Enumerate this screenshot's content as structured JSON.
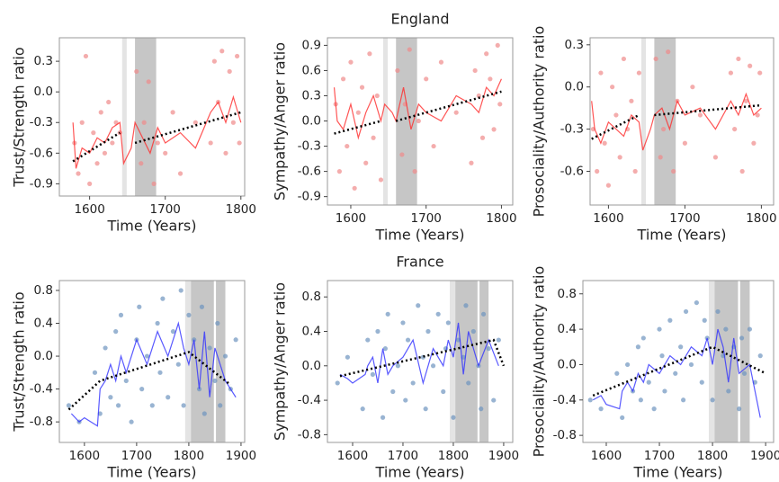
{
  "chart_data": [
    {
      "type": "scatter",
      "ylabel": "Trust/Strength ratio",
      "xlabel": "Time (Years)",
      "xlim": [
        1560,
        1805
      ],
      "ylim": [
        -1.02,
        0.53
      ],
      "xticks": [
        1600,
        1700,
        1800
      ],
      "yticks": [
        0.3,
        {
          "value": 0,
          "label": "0.0"
        },
        -0.3,
        -0.6,
        -0.9
      ],
      "point_color": "#f08a8a",
      "line_color": "#ff2a2a",
      "trend_color": "#000000",
      "spans": [
        {
          "start": 1643,
          "end": 1649,
          "shade": "#e4e4e4"
        },
        {
          "start": 1660,
          "end": 1688,
          "shade": "#c6c6c6"
        }
      ],
      "points": {
        "x": [
          1580,
          1585,
          1590,
          1595,
          1600,
          1605,
          1610,
          1615,
          1620,
          1625,
          1630,
          1635,
          1640,
          1662,
          1668,
          1672,
          1678,
          1685,
          1690,
          1700,
          1710,
          1720,
          1740,
          1760,
          1765,
          1770,
          1775,
          1780,
          1785,
          1790,
          1795,
          1798
        ],
        "y": [
          -0.5,
          -0.8,
          -0.3,
          0.35,
          -0.9,
          -0.4,
          -0.7,
          -0.2,
          -0.6,
          -0.1,
          -0.5,
          -0.3,
          -0.4,
          0.2,
          -0.7,
          -0.3,
          0.1,
          -0.9,
          -0.5,
          -0.6,
          -0.2,
          -0.8,
          -0.3,
          -0.5,
          0.3,
          -0.1,
          0.4,
          -0.6,
          0.2,
          -0.3,
          0.35,
          -0.5
        ]
      },
      "line": {
        "x": [
          1578,
          1582,
          1590,
          1600,
          1610,
          1620,
          1630,
          1640,
          1645,
          1655,
          1660,
          1670,
          1680,
          1690,
          1700,
          1720,
          1740,
          1760,
          1770,
          1780,
          1790,
          1800
        ],
        "y": [
          -0.3,
          -0.75,
          -0.55,
          -0.6,
          -0.45,
          -0.5,
          -0.35,
          -0.3,
          -0.7,
          -0.55,
          -0.3,
          -0.45,
          -0.6,
          -0.35,
          -0.5,
          -0.4,
          -0.55,
          -0.2,
          -0.1,
          -0.3,
          -0.05,
          -0.3
        ]
      },
      "trend": {
        "x": [
          1578,
          1640,
          1650,
          1660,
          1800
        ],
        "y": [
          -0.68,
          -0.4,
          null,
          -0.5,
          -0.2
        ]
      }
    },
    {
      "type": "scatter",
      "title": "England",
      "ylabel": "Sympathy/Anger ratio",
      "xlabel": "Time (Years)",
      "xlim": [
        1569,
        1815
      ],
      "ylim": [
        -1.0,
        0.99
      ],
      "xticks": [
        1600,
        1700,
        1800
      ],
      "yticks": [
        0.9,
        0.6,
        0.3,
        {
          "value": 0,
          "label": "0.0"
        },
        -0.3,
        -0.6,
        -0.9
      ],
      "point_color": "#f08a8a",
      "line_color": "#ff2a2a",
      "trend_color": "#000000",
      "spans": [
        {
          "start": 1643,
          "end": 1649,
          "shade": "#e4e4e4"
        },
        {
          "start": 1660,
          "end": 1688,
          "shade": "#c6c6c6"
        }
      ],
      "points": {
        "x": [
          1580,
          1585,
          1590,
          1595,
          1600,
          1605,
          1610,
          1615,
          1620,
          1625,
          1630,
          1635,
          1640,
          1662,
          1668,
          1672,
          1678,
          1685,
          1690,
          1700,
          1710,
          1720,
          1740,
          1760,
          1765,
          1770,
          1775,
          1780,
          1785,
          1790,
          1795,
          1798
        ],
        "y": [
          0.2,
          -0.6,
          0.5,
          -0.3,
          0.7,
          -0.8,
          0.1,
          0.4,
          -0.5,
          0.8,
          -0.2,
          0.3,
          -0.7,
          0.6,
          -0.4,
          0.2,
          0.85,
          -0.6,
          0.0,
          0.5,
          -0.3,
          0.7,
          0.1,
          -0.5,
          0.6,
          0.3,
          -0.2,
          0.8,
          0.5,
          -0.1,
          0.9,
          0.2
        ]
      },
      "line": {
        "x": [
          1578,
          1582,
          1590,
          1600,
          1610,
          1620,
          1630,
          1640,
          1645,
          1655,
          1660,
          1670,
          1680,
          1690,
          1700,
          1720,
          1740,
          1760,
          1770,
          1780,
          1790,
          1800
        ],
        "y": [
          0.4,
          0.0,
          -0.1,
          0.2,
          -0.2,
          0.1,
          0.3,
          0.0,
          0.2,
          0.1,
          0.0,
          0.4,
          -0.1,
          0.2,
          0.1,
          0.0,
          0.3,
          0.2,
          0.1,
          0.4,
          0.3,
          0.5
        ]
      },
      "trend": {
        "x": [
          1578,
          1640,
          1650,
          1660,
          1800
        ],
        "y": [
          -0.15,
          0.0,
          null,
          0.0,
          0.35
        ]
      }
    },
    {
      "type": "scatter",
      "ylabel": "Prosociality/Authority ratio",
      "xlabel": "Time (Years)",
      "xlim": [
        1576,
        1816
      ],
      "ylim": [
        -0.84,
        0.35
      ],
      "xticks": [
        1600,
        1700,
        1800
      ],
      "yticks": [
        0.3,
        {
          "value": 0,
          "label": "0.0"
        },
        -0.3,
        -0.6
      ],
      "point_color": "#f08a8a",
      "line_color": "#ff2a2a",
      "trend_color": "#000000",
      "spans": [
        {
          "start": 1643,
          "end": 1649,
          "shade": "#e4e4e4"
        },
        {
          "start": 1660,
          "end": 1688,
          "shade": "#c6c6c6"
        }
      ],
      "points": {
        "x": [
          1580,
          1585,
          1590,
          1595,
          1600,
          1605,
          1610,
          1615,
          1620,
          1625,
          1630,
          1635,
          1640,
          1662,
          1668,
          1672,
          1678,
          1685,
          1690,
          1700,
          1710,
          1720,
          1740,
          1760,
          1765,
          1770,
          1775,
          1780,
          1785,
          1790,
          1795,
          1798
        ],
        "y": [
          -0.3,
          -0.6,
          0.1,
          -0.4,
          -0.7,
          0.0,
          -0.2,
          -0.5,
          0.2,
          -0.3,
          -0.1,
          -0.6,
          0.1,
          0.2,
          -0.5,
          -0.3,
          0.25,
          -0.6,
          -0.1,
          -0.4,
          0.0,
          -0.2,
          -0.5,
          0.1,
          -0.3,
          0.2,
          -0.6,
          -0.1,
          0.15,
          -0.4,
          -0.2,
          0.1
        ]
      },
      "line": {
        "x": [
          1578,
          1582,
          1590,
          1600,
          1610,
          1620,
          1630,
          1640,
          1645,
          1655,
          1660,
          1670,
          1680,
          1690,
          1700,
          1720,
          1740,
          1760,
          1770,
          1780,
          1790,
          1800
        ],
        "y": [
          -0.1,
          -0.3,
          -0.4,
          -0.25,
          -0.3,
          -0.35,
          -0.2,
          -0.25,
          -0.45,
          -0.3,
          -0.2,
          -0.15,
          -0.3,
          -0.1,
          -0.2,
          -0.15,
          -0.3,
          -0.1,
          -0.2,
          -0.05,
          -0.2,
          -0.15
        ]
      },
      "trend": {
        "x": [
          1578,
          1640,
          1650,
          1660,
          1800
        ],
        "y": [
          -0.37,
          -0.2,
          null,
          -0.2,
          -0.13
        ]
      }
    },
    {
      "type": "scatter",
      "ylabel": "Trust/Strength ratio",
      "xlabel": "Time (Years)",
      "xlim": [
        1552,
        1907
      ],
      "ylim": [
        -1.05,
        0.92
      ],
      "xticks": [
        1600,
        1700,
        1800,
        1900
      ],
      "yticks": [
        0.8,
        0.4,
        {
          "value": 0,
          "label": "0.0"
        },
        -0.4,
        -0.8
      ],
      "point_color": "#6d94bf",
      "line_color": "#2f2fff",
      "trend_color": "#000000",
      "spans": [
        {
          "start": 1793,
          "end": 1804,
          "shade": "#e4e4e4"
        },
        {
          "start": 1804,
          "end": 1848,
          "shade": "#c6c6c6"
        },
        {
          "start": 1852,
          "end": 1870,
          "shade": "#c6c6c6"
        }
      ],
      "points": {
        "x": [
          1570,
          1590,
          1620,
          1630,
          1640,
          1650,
          1660,
          1665,
          1670,
          1680,
          1690,
          1700,
          1705,
          1710,
          1720,
          1730,
          1740,
          1745,
          1750,
          1760,
          1770,
          1780,
          1785,
          1790,
          1800,
          1810,
          1820,
          1825,
          1830,
          1840,
          1850,
          1855,
          1860,
          1870,
          1880,
          1890
        ],
        "y": [
          -0.6,
          -0.8,
          -0.2,
          -0.7,
          0.1,
          -0.5,
          0.3,
          -0.6,
          0.5,
          -0.3,
          -0.8,
          0.2,
          0.6,
          -0.4,
          0.0,
          -0.6,
          0.4,
          -0.2,
          0.7,
          -0.5,
          0.3,
          -0.1,
          0.8,
          -0.6,
          0.5,
          0.2,
          -0.4,
          0.6,
          -0.7,
          0.1,
          -0.3,
          0.4,
          -0.6,
          0.0,
          -0.4,
          0.2
        ]
      },
      "line": {
        "x": [
          1575,
          1590,
          1600,
          1625,
          1630,
          1640,
          1650,
          1660,
          1670,
          1680,
          1700,
          1720,
          1740,
          1760,
          1780,
          1790,
          1800,
          1810,
          1820,
          1830,
          1840,
          1850,
          1870,
          1890
        ],
        "y": [
          -0.7,
          -0.8,
          -0.75,
          -0.85,
          -0.4,
          -0.3,
          -0.1,
          -0.3,
          0.0,
          -0.2,
          0.2,
          -0.1,
          0.3,
          0.0,
          0.4,
          0.1,
          -0.1,
          0.2,
          -0.4,
          0.3,
          -0.5,
          0.1,
          -0.3,
          -0.5
        ]
      },
      "trend": {
        "x": [
          1570,
          1630,
          1800,
          1880
        ],
        "y": [
          -0.65,
          -0.3,
          0.05,
          -0.35
        ]
      }
    },
    {
      "type": "scatter",
      "title": "France",
      "ylabel": "Sympathy/Anger ratio",
      "xlabel": "Time (Years)",
      "xlim": [
        1550,
        1918
      ],
      "ylim": [
        -0.89,
        0.99
      ],
      "xticks": [
        1600,
        1700,
        1800,
        1900
      ],
      "yticks": [
        0.8,
        0.4,
        {
          "value": 0,
          "label": "0.0"
        },
        -0.4,
        -0.8
      ],
      "point_color": "#6d94bf",
      "line_color": "#2f2fff",
      "trend_color": "#000000",
      "spans": [
        {
          "start": 1793,
          "end": 1804,
          "shade": "#e4e4e4"
        },
        {
          "start": 1804,
          "end": 1848,
          "shade": "#c6c6c6"
        },
        {
          "start": 1852,
          "end": 1870,
          "shade": "#c6c6c6"
        }
      ],
      "points": {
        "x": [
          1570,
          1590,
          1620,
          1630,
          1640,
          1650,
          1660,
          1665,
          1670,
          1680,
          1690,
          1700,
          1705,
          1710,
          1720,
          1730,
          1740,
          1745,
          1750,
          1760,
          1770,
          1780,
          1785,
          1790,
          1800,
          1810,
          1820,
          1825,
          1830,
          1840,
          1850,
          1855,
          1860,
          1870,
          1880,
          1890
        ],
        "y": [
          -0.2,
          0.1,
          -0.5,
          0.3,
          -0.1,
          0.4,
          -0.6,
          0.2,
          0.6,
          -0.3,
          0.0,
          0.5,
          -0.4,
          0.3,
          -0.2,
          0.7,
          0.1,
          -0.5,
          0.4,
          0.0,
          0.6,
          -0.3,
          0.2,
          0.5,
          -0.6,
          0.3,
          0.1,
          0.7,
          -0.2,
          0.4,
          0.0,
          -0.5,
          0.6,
          0.2,
          -0.4,
          0.3
        ]
      },
      "line": {
        "x": [
          1575,
          1590,
          1600,
          1625,
          1630,
          1640,
          1650,
          1660,
          1670,
          1680,
          1700,
          1720,
          1740,
          1760,
          1780,
          1790,
          1800,
          1810,
          1820,
          1830,
          1840,
          1850,
          1870,
          1890
        ],
        "y": [
          -0.1,
          -0.15,
          -0.2,
          -0.1,
          0.0,
          0.1,
          -0.2,
          0.2,
          -0.1,
          0.0,
          0.1,
          0.3,
          -0.2,
          0.2,
          0.0,
          0.3,
          0.1,
          0.5,
          -0.1,
          0.4,
          0.2,
          0.0,
          0.3,
          0.0
        ]
      },
      "trend": {
        "x": [
          1575,
          1880,
          1900
        ],
        "y": [
          -0.12,
          0.3,
          0.0
        ]
      }
    },
    {
      "type": "scatter",
      "ylabel": "Prosociality/Authority ratio",
      "xlabel": "Time (Years)",
      "xlim": [
        1556,
        1915
      ],
      "ylim": [
        -0.88,
        0.95
      ],
      "xticks": [
        1600,
        1700,
        1800,
        1900
      ],
      "yticks": [
        0.8,
        0.4,
        {
          "value": 0,
          "label": "0.0"
        },
        -0.4,
        -0.8
      ],
      "point_color": "#6d94bf",
      "line_color": "#2f2fff",
      "trend_color": "#000000",
      "spans": [
        {
          "start": 1793,
          "end": 1804,
          "shade": "#e4e4e4"
        },
        {
          "start": 1804,
          "end": 1848,
          "shade": "#c6c6c6"
        },
        {
          "start": 1852,
          "end": 1870,
          "shade": "#c6c6c6"
        }
      ],
      "points": {
        "x": [
          1570,
          1590,
          1620,
          1630,
          1640,
          1650,
          1660,
          1665,
          1670,
          1680,
          1690,
          1700,
          1705,
          1710,
          1720,
          1730,
          1740,
          1745,
          1750,
          1760,
          1770,
          1780,
          1785,
          1790,
          1800,
          1810,
          1820,
          1825,
          1830,
          1840,
          1850,
          1855,
          1860,
          1870,
          1880,
          1890
        ],
        "y": [
          -0.4,
          -0.5,
          -0.1,
          -0.6,
          0.0,
          -0.3,
          0.2,
          -0.4,
          0.3,
          -0.2,
          -0.5,
          0.4,
          0.1,
          -0.3,
          0.5,
          -0.1,
          0.2,
          -0.4,
          0.6,
          0.0,
          0.7,
          -0.2,
          0.5,
          0.3,
          -0.4,
          0.6,
          0.1,
          0.4,
          -0.3,
          0.2,
          -0.5,
          0.3,
          -0.1,
          0.4,
          -0.2,
          0.1
        ]
      },
      "line": {
        "x": [
          1575,
          1590,
          1600,
          1625,
          1630,
          1640,
          1650,
          1660,
          1670,
          1680,
          1700,
          1720,
          1740,
          1760,
          1780,
          1790,
          1800,
          1810,
          1820,
          1830,
          1840,
          1850,
          1870,
          1890
        ],
        "y": [
          -0.4,
          -0.35,
          -0.45,
          -0.5,
          -0.3,
          -0.2,
          -0.3,
          -0.1,
          -0.2,
          0.0,
          -0.1,
          0.1,
          0.0,
          0.2,
          0.1,
          0.3,
          0.0,
          0.4,
          0.2,
          -0.2,
          0.3,
          -0.1,
          0.0,
          -0.6
        ]
      },
      "trend": {
        "x": [
          1575,
          1800,
          1900
        ],
        "y": [
          -0.35,
          0.2,
          -0.1
        ]
      }
    }
  ]
}
